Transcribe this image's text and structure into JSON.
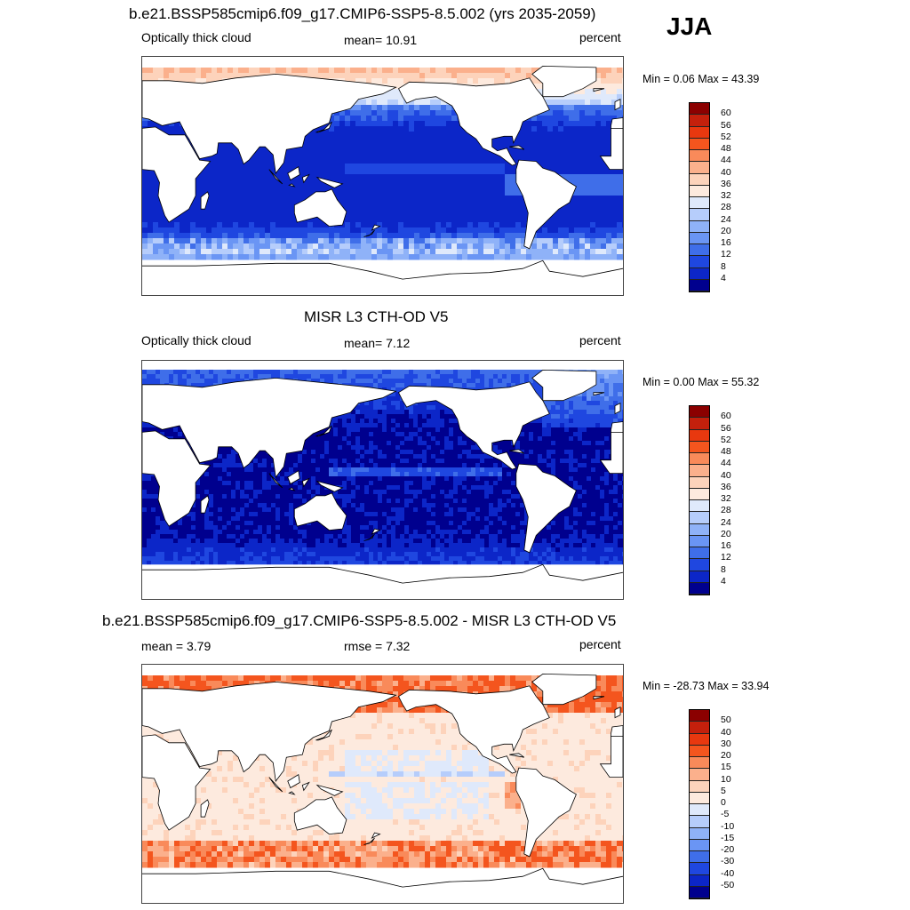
{
  "season": "JJA",
  "panels": [
    {
      "title": "b.e21.BSSP585cmip6.f09_g17.CMIP6-SSP5-8.5.002 (yrs 2035-2059)",
      "left_label": "Optically thick cloud",
      "center_label": "mean=  10.91",
      "right_label": "percent",
      "minmax": "Min =   0.06 Max =  43.39",
      "scheme": "abs",
      "colorbar": {
        "ticks": [
          "60",
          "56",
          "52",
          "48",
          "44",
          "40",
          "36",
          "32",
          "28",
          "24",
          "20",
          "16",
          "12",
          "8",
          "4"
        ],
        "colors": [
          "#8b0000",
          "#c4200c",
          "#e8380f",
          "#f4551e",
          "#f98a5a",
          "#fbb08c",
          "#fdd3bb",
          "#fdeade",
          "#dfe9fb",
          "#b6cdfb",
          "#8fb2f8",
          "#6a95f4",
          "#3f6ee9",
          "#1f47e0",
          "#0c26c8",
          "#00008e"
        ]
      }
    },
    {
      "title": "MISR L3 CTH-OD V5",
      "left_label": "Optically thick cloud",
      "center_label": "mean=   7.12",
      "right_label": "percent",
      "minmax": "Min =   0.00 Max =  55.32",
      "scheme": "abs",
      "colorbar": {
        "ticks": [
          "60",
          "56",
          "52",
          "48",
          "44",
          "40",
          "36",
          "32",
          "28",
          "24",
          "20",
          "16",
          "12",
          "8",
          "4"
        ],
        "colors": [
          "#8b0000",
          "#c4200c",
          "#e8380f",
          "#f4551e",
          "#f98a5a",
          "#fbb08c",
          "#fdd3bb",
          "#fdeade",
          "#dfe9fb",
          "#b6cdfb",
          "#8fb2f8",
          "#6a95f4",
          "#3f6ee9",
          "#1f47e0",
          "#0c26c8",
          "#00008e"
        ]
      }
    },
    {
      "title": "b.e21.BSSP585cmip6.f09_g17.CMIP6-SSP5-8.5.002 - MISR L3 CTH-OD V5",
      "left_label": "mean =   3.79",
      "center_label": "rmse =   7.32",
      "right_label": "percent",
      "minmax": "Min = -28.73 Max =  33.94",
      "scheme": "diff",
      "colorbar": {
        "ticks": [
          "50",
          "40",
          "30",
          "20",
          "15",
          "10",
          "5",
          "0",
          "-5",
          "-10",
          "-15",
          "-20",
          "-30",
          "-40",
          "-50"
        ],
        "colors": [
          "#8b0000",
          "#c4200c",
          "#e8380f",
          "#f4551e",
          "#f98a5a",
          "#fbb08c",
          "#fdd3bb",
          "#fdeade",
          "#dfe9fb",
          "#b6cdfb",
          "#8fb2f8",
          "#6a95f4",
          "#3f6ee9",
          "#1f47e0",
          "#0c26c8",
          "#00008e"
        ]
      }
    }
  ]
}
